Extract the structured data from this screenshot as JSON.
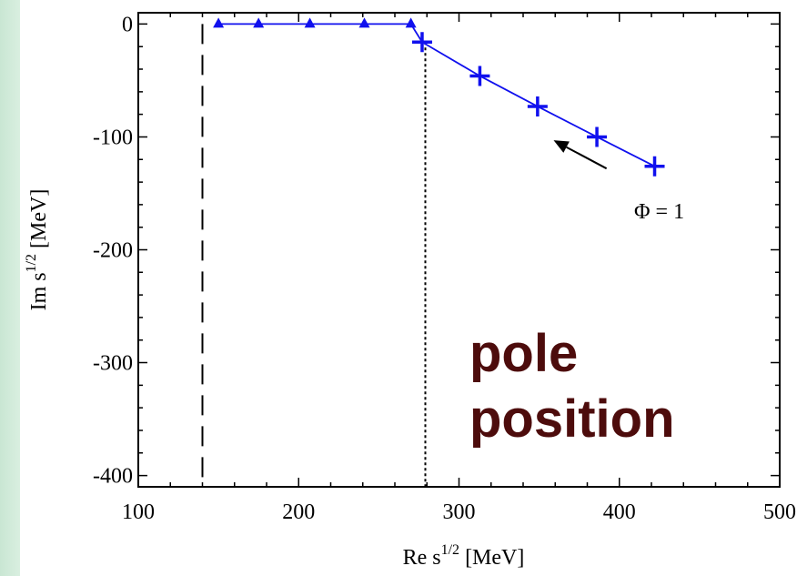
{
  "chart_data": {
    "type": "scatter",
    "title": "",
    "xlabel": "Re s",
    "xlabel_sup": "1/2",
    "xlabel_unit": "[MeV]",
    "ylabel": "Im s",
    "ylabel_sup": "1/2",
    "ylabel_unit": "[MeV]",
    "xlim": [
      100,
      500
    ],
    "ylim": [
      -410,
      10
    ],
    "x_ticks": [
      100,
      200,
      300,
      400,
      500
    ],
    "x_tick_labels": [
      "100",
      "200",
      "300",
      "400",
      "500"
    ],
    "y_ticks": [
      0,
      -100,
      -200,
      -300,
      -400
    ],
    "y_tick_labels": [
      "0",
      "-100",
      "-200",
      "-300",
      "-400"
    ],
    "grid": false,
    "series": [
      {
        "marker": "triangle",
        "color": "#1010ee",
        "x": [
          150,
          175,
          207,
          241,
          270
        ],
        "y": [
          0,
          0,
          0,
          0,
          0
        ]
      },
      {
        "marker": "plus",
        "color": "#1010ee",
        "x": [
          277,
          313,
          349,
          386,
          422
        ],
        "y": [
          -16,
          -46,
          -73,
          -100,
          -126
        ]
      }
    ],
    "curve": {
      "color": "#1010ee",
      "x": [
        150,
        270,
        277,
        313,
        349,
        386,
        422
      ],
      "y": [
        0,
        0,
        -16,
        -46,
        -73,
        -100,
        -126
      ]
    },
    "vlines": [
      {
        "x": 140,
        "style": "dashed"
      },
      {
        "x": 279,
        "style": "dotted"
      }
    ],
    "annotations": {
      "phi_label": "Φ = 1",
      "arrow_from": [
        392,
        -128
      ],
      "arrow_to": [
        359,
        -103
      ]
    },
    "overlay_text": [
      "pole",
      "position"
    ],
    "overlay_color": "#4d0c0c"
  }
}
